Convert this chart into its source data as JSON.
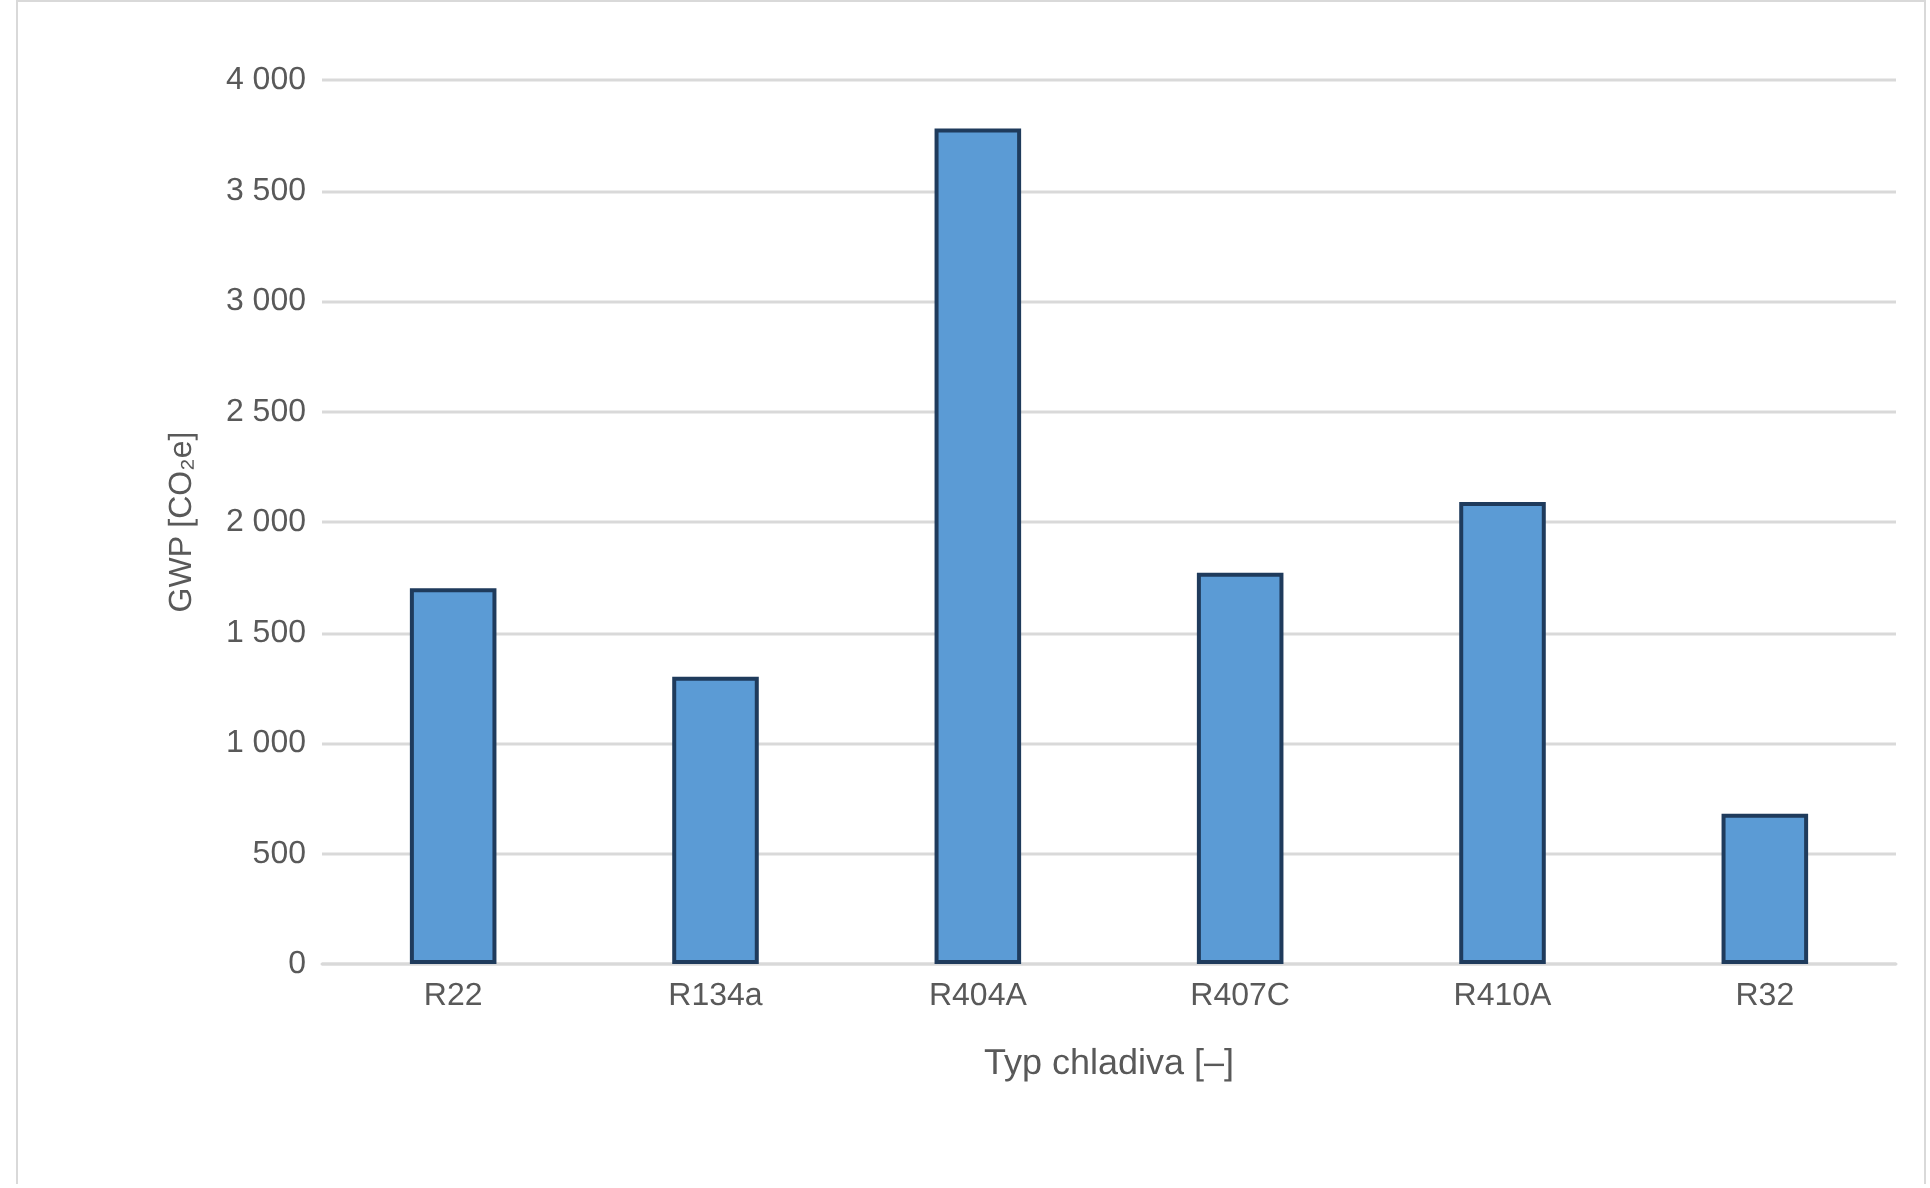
{
  "chart_data": {
    "type": "bar",
    "xlabel": "Typ chladiva [–]",
    "ylabel": "GWP [CO₂e]",
    "categories": [
      "R22",
      "R134a",
      "R404A",
      "R407C",
      "R410A",
      "R32"
    ],
    "values": [
      1700,
      1300,
      3780,
      1770,
      2090,
      680
    ],
    "color": "#5b9bd5",
    "ylim": [
      0,
      4000
    ],
    "yticks": [
      0,
      500,
      {
        "value": 1000,
        "label": "1 000"
      },
      {
        "value": 1500,
        "label": "1 500"
      },
      {
        "value": 2000,
        "label": "2 000"
      },
      {
        "value": 2500,
        "label": "2 500"
      },
      {
        "value": 3000,
        "label": "3 000"
      },
      {
        "value": 3500,
        "label": "3 500"
      },
      {
        "value": 4000,
        "label": "4 000"
      }
    ],
    "grid": "y"
  }
}
